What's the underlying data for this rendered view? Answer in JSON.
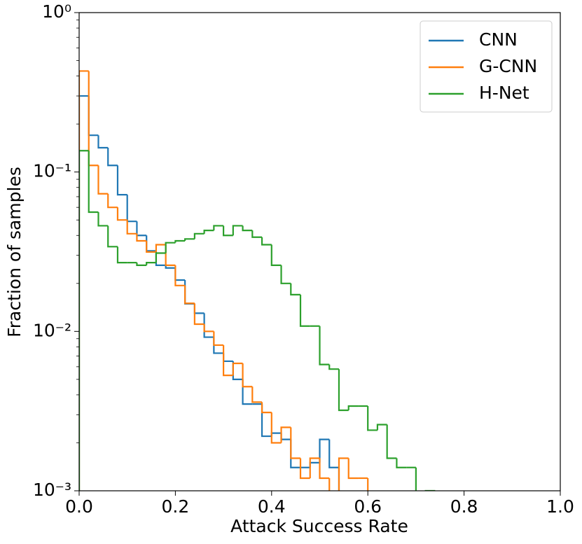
{
  "chart_data": {
    "type": "histogram",
    "xlabel": "Attack Success Rate",
    "ylabel": "Fraction of samples",
    "log_y": true,
    "legend": "upper right",
    "xlim": [
      0,
      1
    ],
    "ylim": [
      0.001,
      1
    ],
    "xticks": [
      {
        "value": 0,
        "label": "0.0"
      },
      0.2,
      0.4,
      0.6,
      0.8,
      {
        "value": 1,
        "label": "1.0"
      }
    ],
    "yticks": [
      {
        "value": 0.001,
        "label": "10⁻³"
      },
      {
        "value": 0.01,
        "label": "10⁻²"
      },
      {
        "value": 0.1,
        "label": "10⁻¹"
      },
      {
        "value": 1,
        "label": "10⁰"
      }
    ],
    "bins": [
      0,
      0.02,
      0.04,
      0.06,
      0.08,
      0.1,
      0.12,
      0.14,
      0.16,
      0.18,
      0.2,
      0.22,
      0.24,
      0.26,
      0.28,
      0.3,
      0.32,
      0.34,
      0.36,
      0.38,
      0.4,
      0.42,
      0.44,
      0.46,
      0.48,
      0.5,
      0.52,
      0.54,
      0.56,
      0.58,
      0.6,
      0.62,
      0.64,
      0.66,
      0.68,
      0.7,
      0.72,
      0.74,
      0.76,
      0.78,
      0.8,
      0.82,
      0.84,
      0.86,
      0.88,
      0.9,
      0.92,
      0.94,
      0.96,
      0.98,
      1
    ],
    "series": [
      {
        "name": "CNN",
        "color": "#1f77b4",
        "values": [
          0.3,
          0.17,
          0.142,
          0.11,
          0.072,
          0.049,
          0.04,
          0.032,
          0.026,
          0.025,
          0.021,
          0.0149,
          0.013,
          0.0092,
          0.0073,
          0.0065,
          0.005,
          0.0035,
          0.0035,
          0.0022,
          0.0023,
          0.0021,
          0.0014,
          0.0014,
          0.0015,
          0.0021,
          0.0014,
          null,
          null,
          null,
          null,
          null,
          null,
          null,
          null,
          null,
          null,
          null,
          null,
          null,
          null,
          null,
          null,
          null,
          null,
          null,
          null,
          null,
          null,
          null
        ]
      },
      {
        "name": "G-CNN",
        "color": "#ff7f0e",
        "values": [
          0.43,
          0.11,
          0.073,
          0.06,
          0.05,
          0.041,
          0.037,
          0.0315,
          0.035,
          0.026,
          0.0194,
          0.015,
          0.0111,
          0.01,
          0.0082,
          0.0053,
          0.0063,
          0.0045,
          0.0036,
          0.0031,
          0.002,
          0.0025,
          0.0016,
          0.0012,
          0.0016,
          0.0012,
          null,
          0.0016,
          0.0012,
          0.0012,
          null,
          null,
          null,
          null,
          null,
          null,
          null,
          null,
          null,
          null,
          null,
          null,
          null,
          null,
          null,
          null,
          null,
          null,
          null,
          null
        ]
      },
      {
        "name": "H-Net",
        "color": "#2ca02c",
        "values": [
          0.136,
          0.056,
          0.046,
          0.034,
          0.027,
          0.027,
          0.026,
          0.027,
          0.031,
          0.036,
          0.037,
          0.038,
          0.041,
          0.043,
          0.046,
          0.04,
          0.046,
          0.043,
          0.039,
          0.035,
          0.026,
          0.02,
          0.017,
          0.0108,
          0.0108,
          0.0062,
          0.0058,
          0.0032,
          0.0034,
          0.0034,
          0.0024,
          0.0026,
          0.0016,
          0.0014,
          0.0014,
          null,
          0.001,
          null,
          null,
          null,
          null,
          null,
          null,
          null,
          null,
          null,
          null,
          null,
          null,
          null
        ]
      }
    ]
  }
}
